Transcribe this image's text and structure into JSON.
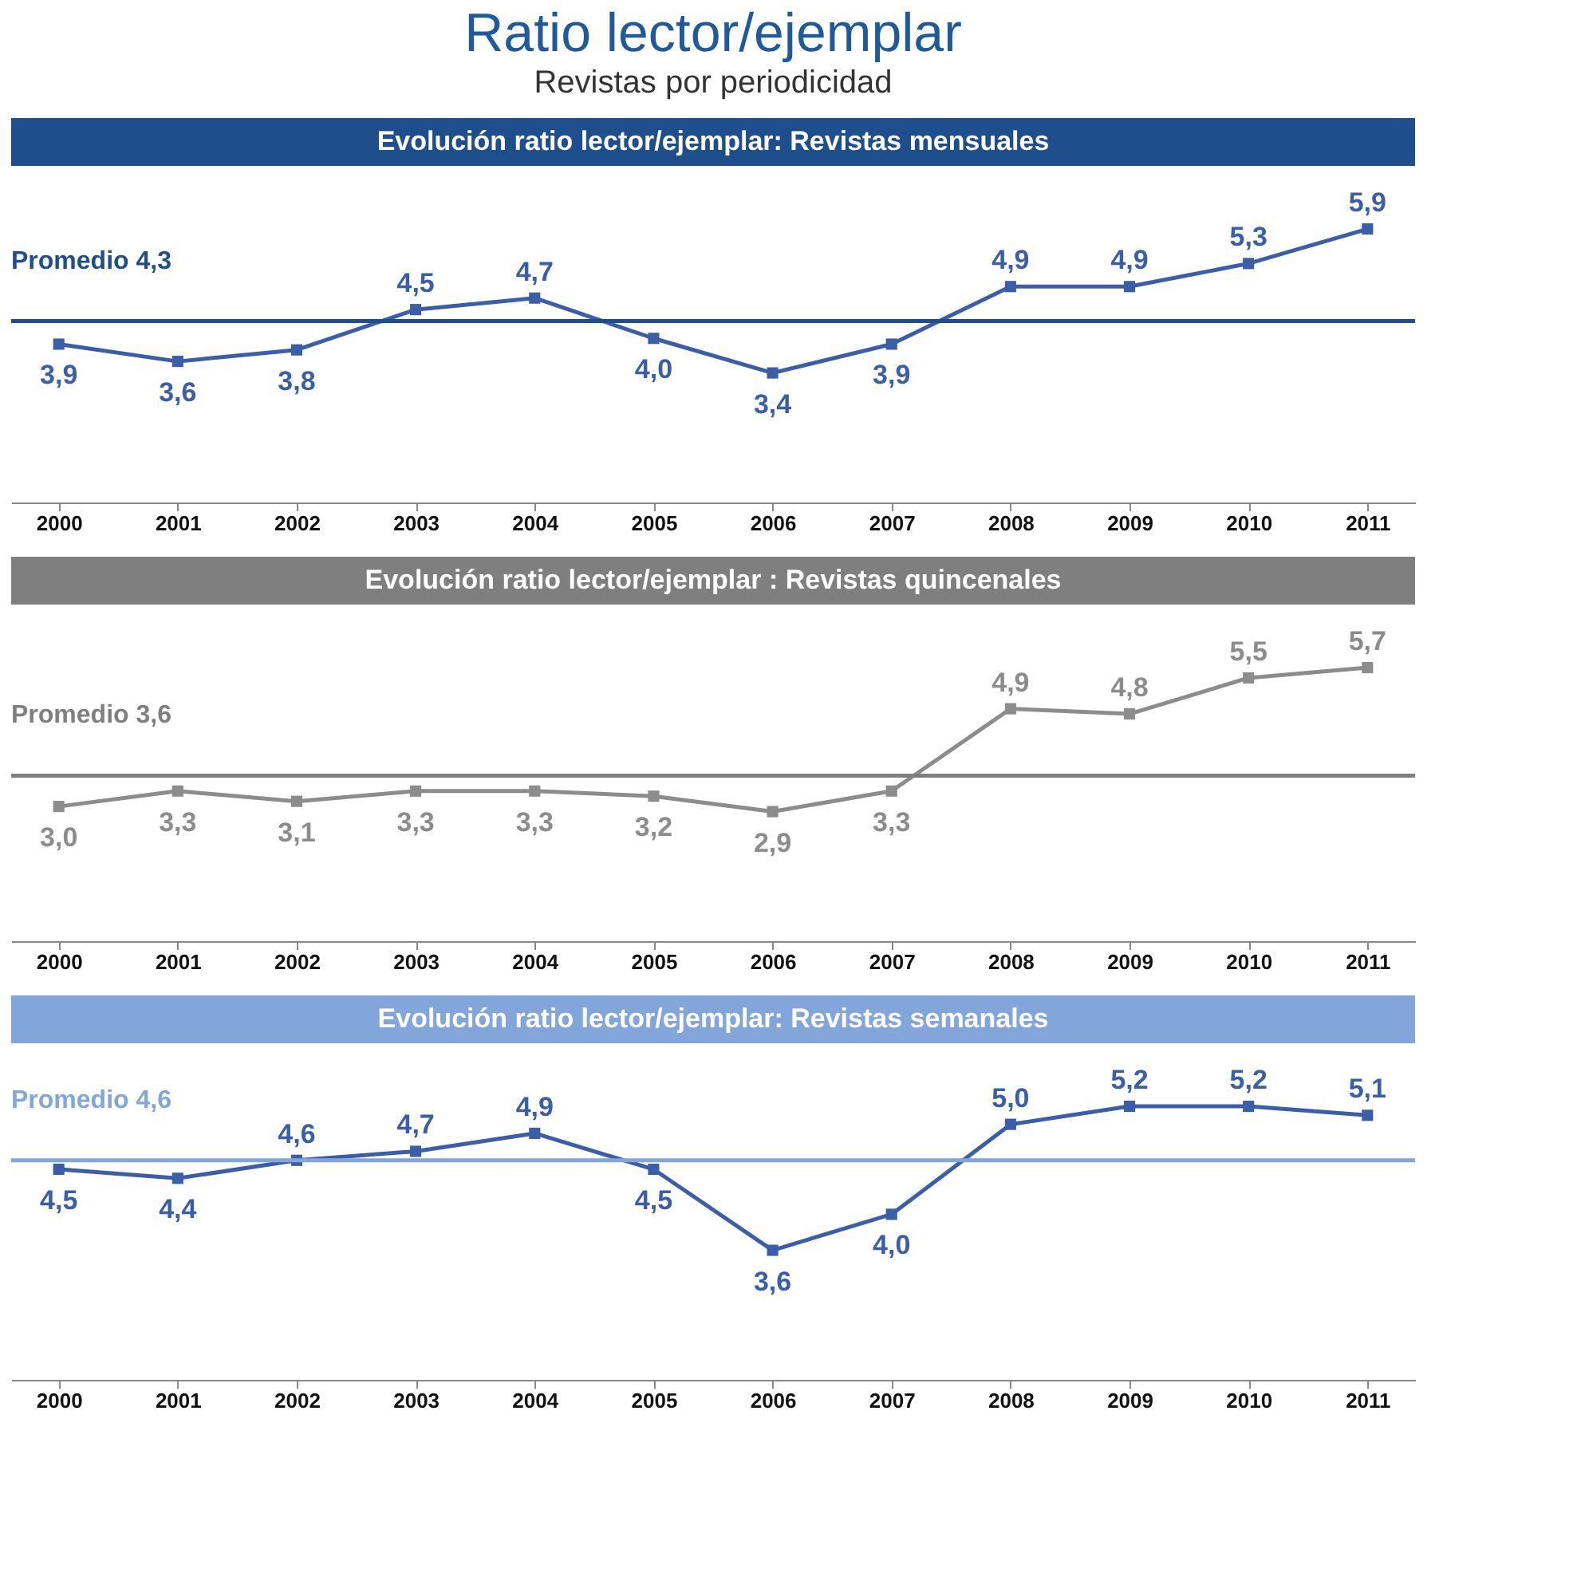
{
  "chart_data": [
    {
      "type": "other",
      "title": "Ratio lector/ejemplar",
      "subtitle": "Revistas por periodicidad"
    },
    {
      "type": "line",
      "title": "Evolución ratio lector/ejemplar: Revistas mensuales",
      "categories": [
        "2000",
        "2001",
        "2002",
        "2003",
        "2004",
        "2005",
        "2006",
        "2007",
        "2008",
        "2009",
        "2010",
        "2011"
      ],
      "series": [
        {
          "color": "#3b5ea8",
          "values": [
            3.9,
            3.6,
            3.8,
            4.5,
            4.7,
            4.0,
            3.4,
            3.9,
            4.9,
            4.9,
            5.3,
            5.9
          ],
          "value_labels": [
            "3,9",
            "3,6",
            "3,8",
            "4,5",
            "4,7",
            "4,0",
            "3,4",
            "3,9",
            "4,9",
            "4,9",
            "5,3",
            "5,9"
          ]
        }
      ],
      "ref_lines": [
        {
          "axis": "y",
          "value": 4.3,
          "label": "Promedio 4,3",
          "color": "#1f4e8c"
        }
      ],
      "marker": "square",
      "grid": false,
      "tick_labels": "x"
    },
    {
      "type": "line",
      "title": "Evolución ratio lector/ejemplar : Revistas quincenales",
      "categories": [
        "2000",
        "2001",
        "2002",
        "2003",
        "2004",
        "2005",
        "2006",
        "2007",
        "2008",
        "2009",
        "2010",
        "2011"
      ],
      "series": [
        {
          "color": "#8c8c8c",
          "values": [
            3.0,
            3.3,
            3.1,
            3.3,
            3.3,
            3.2,
            2.9,
            3.3,
            4.9,
            4.8,
            5.5,
            5.7
          ],
          "value_labels": [
            "3,0",
            "3,3",
            "3,1",
            "3,3",
            "3,3",
            "3,2",
            "2,9",
            "3,3",
            "4,9",
            "4,8",
            "5,5",
            "5,7"
          ]
        }
      ],
      "ref_lines": [
        {
          "axis": "y",
          "value": 3.6,
          "label": "Promedio 3,6",
          "color": "#7f7f7f"
        }
      ],
      "marker": "square",
      "grid": false,
      "tick_labels": "x"
    },
    {
      "type": "line",
      "title": "Evolución ratio lector/ejemplar: Revistas semanales",
      "categories": [
        "2000",
        "2001",
        "2002",
        "2003",
        "2004",
        "2005",
        "2006",
        "2007",
        "2008",
        "2009",
        "2010",
        "2011"
      ],
      "series": [
        {
          "color": "#3b5ea8",
          "values": [
            4.5,
            4.4,
            4.6,
            4.7,
            4.9,
            4.5,
            3.6,
            4.0,
            5.0,
            5.2,
            5.2,
            5.1
          ],
          "value_labels": [
            "4,5",
            "4,4",
            "4,6",
            "4,7",
            "4,9",
            "4,5",
            "3,6",
            "4,0",
            "5,0",
            "5,2",
            "5,2",
            "5,1"
          ]
        }
      ],
      "ref_lines": [
        {
          "axis": "y",
          "value": 4.6,
          "label": "Promedio 4,6",
          "color": "#82a6d9"
        }
      ],
      "marker": "square",
      "grid": false,
      "tick_labels": "x"
    }
  ]
}
